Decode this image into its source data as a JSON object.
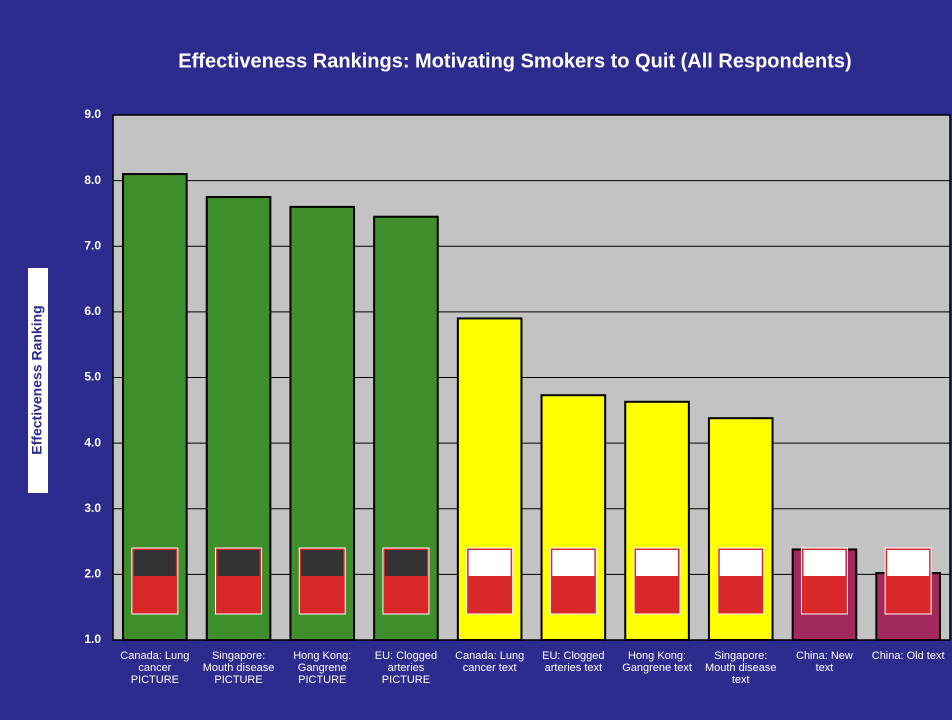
{
  "chart_data": {
    "type": "bar",
    "title": "Effectiveness Rankings: Motivating Smokers to Quit  (All Respondents)",
    "y_label": "Effectiveness Ranking",
    "categories": [
      "Canada: Lung cancer PICTURE",
      "Singapore: Mouth disease PICTURE",
      "Hong Kong: Gangrene PICTURE",
      "EU: Clogged arteries PICTURE",
      "Canada: Lung cancer text",
      "EU: Clogged arteries text",
      "Hong Kong: Gangrene text",
      "Singapore: Mouth disease text",
      "China: New text",
      "China: Old text"
    ],
    "values": [
      8.1,
      7.75,
      7.6,
      7.45,
      5.9,
      4.73,
      4.63,
      4.38,
      2.38,
      2.02
    ],
    "colors": [
      "#3f8f2c",
      "#3f8f2c",
      "#3f8f2c",
      "#3f8f2c",
      "#ffff00",
      "#ffff00",
      "#ffff00",
      "#ffff00",
      "#a3285c",
      "#a3285c"
    ],
    "ylim": [
      1,
      9
    ],
    "yticks": [
      {
        "value": 1,
        "label": "1.0"
      },
      {
        "value": 2,
        "label": "2.0"
      },
      {
        "value": 3,
        "label": "3.0"
      },
      {
        "value": 4,
        "label": "4.0"
      },
      {
        "value": 5,
        "label": "5.0"
      },
      {
        "value": 6,
        "label": "6.0"
      },
      {
        "value": 7,
        "label": "7.0"
      },
      {
        "value": 8,
        "label": "8.0"
      },
      {
        "value": 9,
        "label": "9.0"
      }
    ],
    "grid": true
  }
}
